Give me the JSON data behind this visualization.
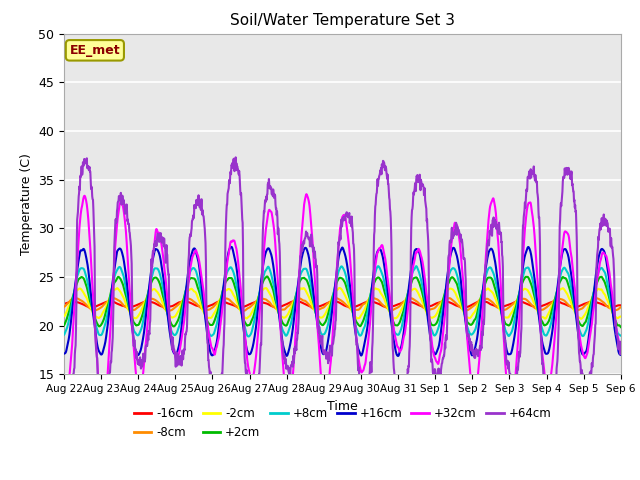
{
  "title": "Soil/Water Temperature Set 3",
  "xlabel": "Time",
  "ylabel": "Temperature (C)",
  "ylim": [
    15,
    50
  ],
  "xtick_labels": [
    "Aug 22",
    "Aug 23",
    "Aug 24",
    "Aug 25",
    "Aug 26",
    "Aug 27",
    "Aug 28",
    "Aug 29",
    "Aug 30",
    "Aug 31",
    "Sep 1",
    "Sep 2",
    "Sep 3",
    "Sep 4",
    "Sep 5",
    "Sep 6"
  ],
  "annotation_text": "EE_met",
  "annotation_color": "#8B0000",
  "annotation_bg": "#FFFF99",
  "annotation_border": "#999900",
  "series": [
    {
      "label": "-16cm",
      "color": "#FF0000"
    },
    {
      "label": "-8cm",
      "color": "#FF8C00"
    },
    {
      "label": "-2cm",
      "color": "#FFFF00"
    },
    {
      "label": "+2cm",
      "color": "#00BB00"
    },
    {
      "label": "+8cm",
      "color": "#00CCCC"
    },
    {
      "label": "+16cm",
      "color": "#0000CC"
    },
    {
      "label": "+32cm",
      "color": "#FF00FF"
    },
    {
      "label": "+64cm",
      "color": "#9933CC"
    }
  ],
  "plot_bg": "#E8E8E8",
  "grid_color": "#FFFFFF"
}
